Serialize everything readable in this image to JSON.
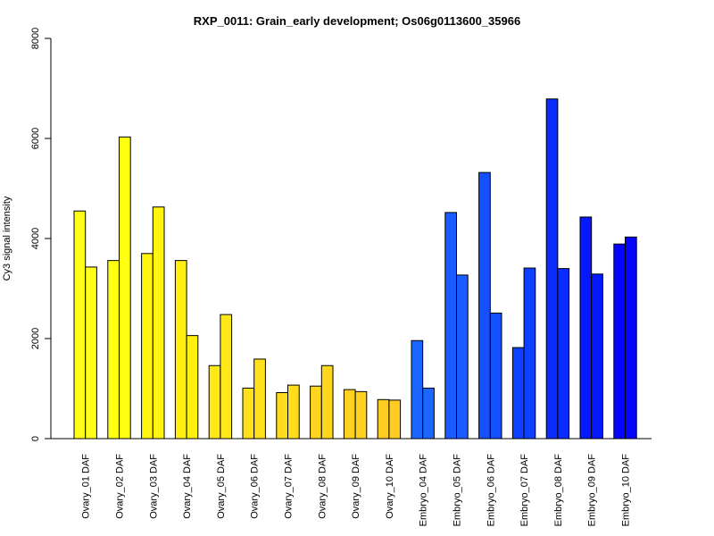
{
  "chart_data": {
    "type": "bar",
    "title": "RXP_0011: Grain_early development; Os06g0113600_35966",
    "xlabel": "",
    "ylabel": "Cy3 signal intensity",
    "ylim": [
      0,
      8000
    ],
    "yticks": [
      0,
      2000,
      4000,
      6000,
      8000
    ],
    "grid": false,
    "categories": [
      "Ovary_01 DAF",
      "Ovary_02 DAF",
      "Ovary_03 DAF",
      "Ovary_04 DAF",
      "Ovary_05 DAF",
      "Ovary_06 DAF",
      "Ovary_07 DAF",
      "Ovary_08 DAF",
      "Ovary_09 DAF",
      "Ovary_10 DAF",
      "Embryo_04 DAF",
      "Embryo_05 DAF",
      "Embryo_06 DAF",
      "Embryo_07 DAF",
      "Embryo_08 DAF",
      "Embryo_09 DAF",
      "Embryo_10 DAF"
    ],
    "category_colors": [
      "#ffff1a",
      "#ffff12",
      "#fff50f",
      "#fff00f",
      "#ffe817",
      "#ffe01a",
      "#ffdc1c",
      "#ffd61e",
      "#ffd21f",
      "#ffcc22",
      "#1a66ff",
      "#1a5cff",
      "#1550ff",
      "#1040ff",
      "#0a2cff",
      "#0518ff",
      "#0505ff"
    ],
    "series": [
      {
        "values": [
          4550,
          3560,
          3700,
          3560,
          1460,
          1010,
          920,
          1050,
          980,
          780,
          1960,
          4520,
          5320,
          1820,
          6790,
          4430,
          3890
        ]
      },
      {
        "values": [
          3430,
          6030,
          4630,
          2060,
          2480,
          1590,
          1070,
          1460,
          940,
          770,
          1010,
          3270,
          2510,
          3410,
          3400,
          3290,
          4030
        ]
      }
    ]
  }
}
